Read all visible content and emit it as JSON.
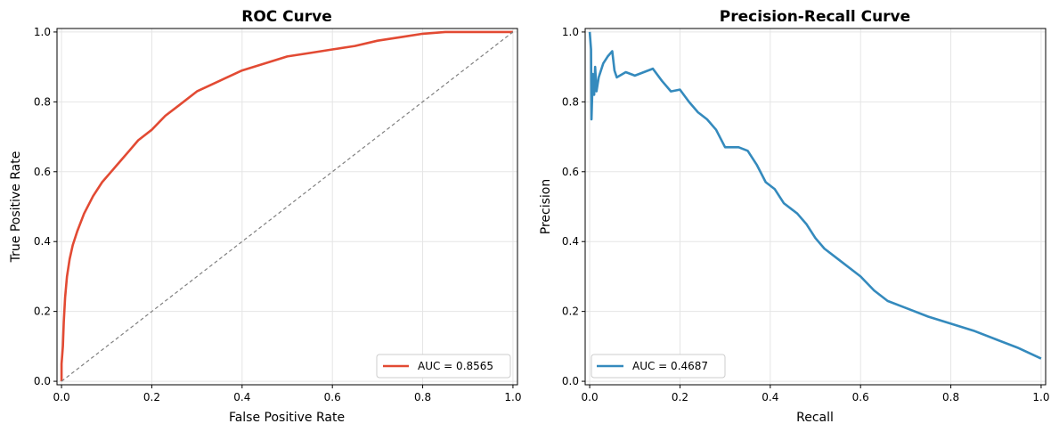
{
  "chart_data": [
    {
      "type": "line",
      "title": "ROC Curve",
      "xlabel": "False Positive Rate",
      "ylabel": "True Positive Rate",
      "xlim": [
        -0.01,
        1.01
      ],
      "ylim": [
        -0.01,
        1.01
      ],
      "xticks": [
        "0.0",
        "0.2",
        "0.4",
        "0.6",
        "0.8",
        "1.0"
      ],
      "yticks": [
        "0.0",
        "0.2",
        "0.4",
        "0.6",
        "0.8",
        "1.0"
      ],
      "grid": true,
      "legend_position": "lower-right",
      "series": [
        {
          "name": "AUC = 0.8565",
          "color": "#e24a33",
          "points": [
            [
              0.0,
              0.0
            ],
            [
              0.0,
              0.05
            ],
            [
              0.003,
              0.1
            ],
            [
              0.005,
              0.17
            ],
            [
              0.008,
              0.24
            ],
            [
              0.012,
              0.3
            ],
            [
              0.018,
              0.35
            ],
            [
              0.025,
              0.39
            ],
            [
              0.035,
              0.43
            ],
            [
              0.05,
              0.48
            ],
            [
              0.07,
              0.53
            ],
            [
              0.09,
              0.57
            ],
            [
              0.11,
              0.6
            ],
            [
              0.13,
              0.63
            ],
            [
              0.15,
              0.66
            ],
            [
              0.17,
              0.69
            ],
            [
              0.2,
              0.72
            ],
            [
              0.23,
              0.76
            ],
            [
              0.26,
              0.79
            ],
            [
              0.3,
              0.83
            ],
            [
              0.35,
              0.86
            ],
            [
              0.4,
              0.89
            ],
            [
              0.45,
              0.91
            ],
            [
              0.5,
              0.93
            ],
            [
              0.55,
              0.94
            ],
            [
              0.6,
              0.95
            ],
            [
              0.65,
              0.96
            ],
            [
              0.7,
              0.975
            ],
            [
              0.75,
              0.985
            ],
            [
              0.8,
              0.995
            ],
            [
              0.85,
              1.0
            ],
            [
              0.9,
              1.0
            ],
            [
              1.0,
              1.0
            ]
          ]
        },
        {
          "name": "",
          "color": "#808080",
          "dashed": true,
          "points": [
            [
              0.0,
              0.0
            ],
            [
              1.0,
              1.0
            ]
          ]
        }
      ]
    },
    {
      "type": "line",
      "title": "Precision-Recall Curve",
      "xlabel": "Recall",
      "ylabel": "Precision",
      "xlim": [
        -0.01,
        1.01
      ],
      "ylim": [
        -0.01,
        1.01
      ],
      "xticks": [
        "0.0",
        "0.2",
        "0.4",
        "0.6",
        "0.8",
        "1.0"
      ],
      "yticks": [
        "0.0",
        "0.2",
        "0.4",
        "0.6",
        "0.8",
        "1.0"
      ],
      "grid": true,
      "legend_position": "lower-left",
      "series": [
        {
          "name": "AUC = 0.4687",
          "color": "#348abd",
          "points": [
            [
              0.0,
              1.0
            ],
            [
              0.003,
              0.95
            ],
            [
              0.004,
              0.75
            ],
            [
              0.007,
              0.88
            ],
            [
              0.01,
              0.82
            ],
            [
              0.012,
              0.9
            ],
            [
              0.015,
              0.83
            ],
            [
              0.02,
              0.87
            ],
            [
              0.03,
              0.91
            ],
            [
              0.04,
              0.93
            ],
            [
              0.05,
              0.945
            ],
            [
              0.055,
              0.89
            ],
            [
              0.06,
              0.87
            ],
            [
              0.08,
              0.885
            ],
            [
              0.1,
              0.875
            ],
            [
              0.12,
              0.885
            ],
            [
              0.14,
              0.895
            ],
            [
              0.16,
              0.86
            ],
            [
              0.18,
              0.83
            ],
            [
              0.2,
              0.835
            ],
            [
              0.22,
              0.8
            ],
            [
              0.24,
              0.77
            ],
            [
              0.26,
              0.75
            ],
            [
              0.28,
              0.72
            ],
            [
              0.3,
              0.67
            ],
            [
              0.33,
              0.67
            ],
            [
              0.35,
              0.66
            ],
            [
              0.37,
              0.62
            ],
            [
              0.39,
              0.57
            ],
            [
              0.41,
              0.55
            ],
            [
              0.43,
              0.51
            ],
            [
              0.46,
              0.48
            ],
            [
              0.48,
              0.45
            ],
            [
              0.5,
              0.41
            ],
            [
              0.52,
              0.38
            ],
            [
              0.55,
              0.35
            ],
            [
              0.6,
              0.3
            ],
            [
              0.63,
              0.26
            ],
            [
              0.66,
              0.23
            ],
            [
              0.7,
              0.21
            ],
            [
              0.75,
              0.185
            ],
            [
              0.8,
              0.165
            ],
            [
              0.85,
              0.145
            ],
            [
              0.9,
              0.12
            ],
            [
              0.95,
              0.095
            ],
            [
              1.0,
              0.065
            ]
          ]
        }
      ]
    }
  ]
}
